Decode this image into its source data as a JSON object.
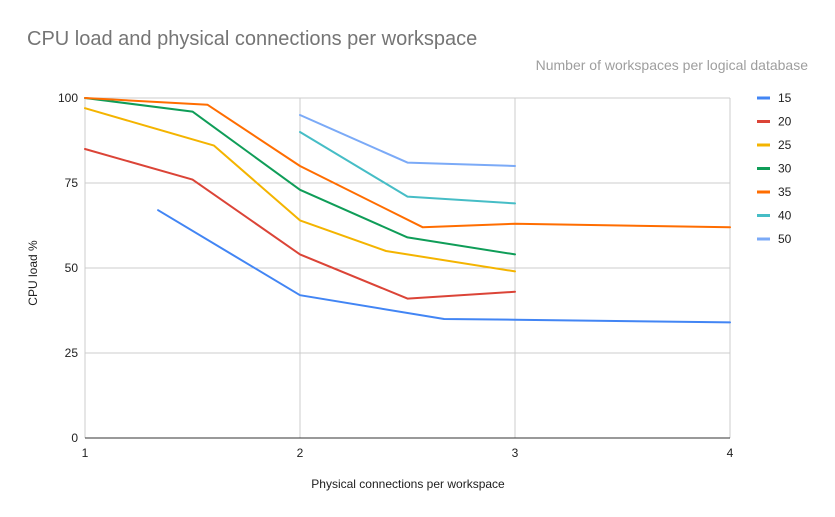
{
  "chart_data": {
    "type": "line",
    "title": "CPU load and physical connections per workspace",
    "legend_title": "Number of workspaces per logical database",
    "xlabel": "Physical connections per workspace",
    "ylabel": "CPU load %",
    "xlim": [
      1,
      4
    ],
    "ylim": [
      0,
      100
    ],
    "x_ticks": [
      "1",
      "2",
      "3",
      "4"
    ],
    "y_ticks": [
      "0",
      "25",
      "50",
      "75",
      "100"
    ],
    "grid": true,
    "legend_position": "right",
    "series": [
      {
        "name": "15",
        "color": "#4285f4",
        "points": [
          [
            1.34,
            67
          ],
          [
            2.0,
            42
          ],
          [
            2.67,
            35
          ],
          [
            3.0,
            34.8
          ],
          [
            4.0,
            34
          ]
        ]
      },
      {
        "name": "20",
        "color": "#db4437",
        "points": [
          [
            1.0,
            85
          ],
          [
            1.5,
            76
          ],
          [
            2.0,
            54
          ],
          [
            2.5,
            41
          ],
          [
            3.0,
            43
          ]
        ]
      },
      {
        "name": "25",
        "color": "#f4b400",
        "points": [
          [
            1.0,
            97
          ],
          [
            1.6,
            86
          ],
          [
            2.0,
            64
          ],
          [
            2.4,
            55
          ],
          [
            3.0,
            49
          ]
        ]
      },
      {
        "name": "30",
        "color": "#0f9d58",
        "points": [
          [
            1.0,
            100
          ],
          [
            1.5,
            96
          ],
          [
            2.0,
            73
          ],
          [
            2.5,
            59
          ],
          [
            3.0,
            54
          ]
        ]
      },
      {
        "name": "35",
        "color": "#ff6d00",
        "points": [
          [
            1.0,
            100
          ],
          [
            1.57,
            98
          ],
          [
            2.0,
            80
          ],
          [
            2.57,
            62
          ],
          [
            3.0,
            63
          ],
          [
            4.0,
            62
          ]
        ]
      },
      {
        "name": "40",
        "color": "#46bdc6",
        "points": [
          [
            2.0,
            90
          ],
          [
            2.5,
            71
          ],
          [
            3.0,
            69
          ]
        ]
      },
      {
        "name": "50",
        "color": "#7baaf7",
        "points": [
          [
            2.0,
            95
          ],
          [
            2.5,
            81
          ],
          [
            3.0,
            80
          ]
        ]
      }
    ]
  }
}
